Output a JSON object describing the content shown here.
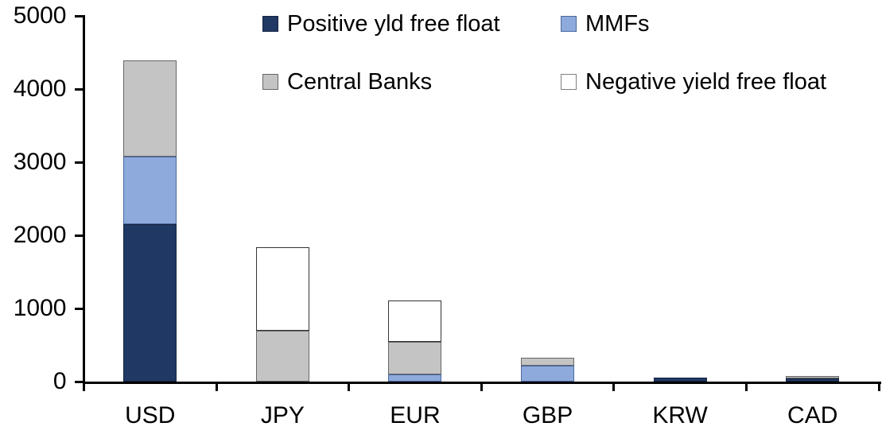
{
  "chart_data": {
    "type": "bar",
    "stacked": true,
    "title": "",
    "xlabel": "",
    "ylabel": "",
    "categories": [
      "USD",
      "JPY",
      "EUR",
      "GBP",
      "KRW",
      "CAD"
    ],
    "series": [
      {
        "name": "Positive yld free float",
        "color": "#1F3864",
        "border": "#17243F",
        "values": [
          2150,
          0,
          0,
          0,
          50,
          45
        ]
      },
      {
        "name": "MMFs",
        "color": "#8EA9DB",
        "border": "#4A68A0",
        "values": [
          930,
          0,
          100,
          220,
          0,
          0
        ]
      },
      {
        "name": "Central Banks",
        "color": "#C4C4C4",
        "border": "#666666",
        "values": [
          1310,
          700,
          440,
          110,
          0,
          30
        ]
      },
      {
        "name": "Negative yield free float",
        "color": "#FFFFFF",
        "border": "#333333",
        "values": [
          0,
          1140,
          570,
          0,
          0,
          0
        ]
      }
    ],
    "ylim": [
      0,
      5000
    ],
    "yticks": [
      0,
      1000,
      2000,
      3000,
      4000,
      5000
    ],
    "ytick_labels": [
      "0",
      "1000",
      "2000",
      "3000",
      "4000",
      "5000"
    ],
    "grid": false,
    "legend_position": "top-inside",
    "legend_rows": [
      [
        "Positive yld free float",
        "MMFs"
      ],
      [
        "Central Banks",
        "Negative yield free float"
      ]
    ],
    "axis_color": "#000000",
    "background_color": "#FFFFFF"
  }
}
